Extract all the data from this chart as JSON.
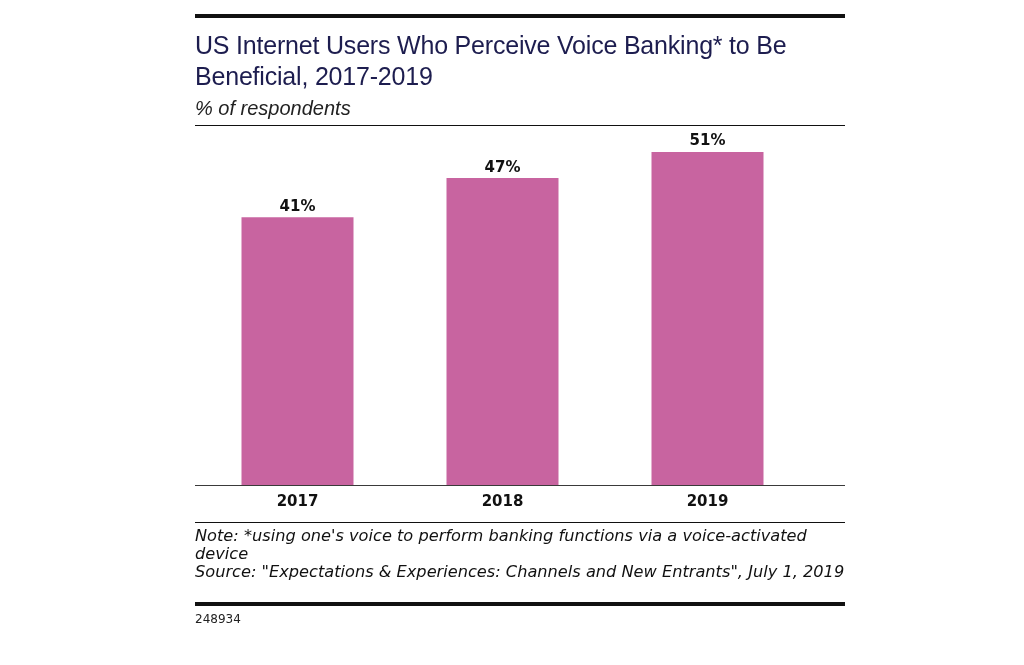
{
  "chart_data": {
    "type": "bar",
    "title": "US Internet Users Who Perceive Voice Banking* to Be Beneficial, 2017-2019",
    "subtitle": "% of respondents",
    "categories": [
      "2017",
      "2018",
      "2019"
    ],
    "values": [
      41,
      47,
      51
    ],
    "color": "#c864a0",
    "value_labels": [
      "41%",
      "47%",
      "51%"
    ],
    "tick_labels": "x",
    "annotations": [
      "Note: *using one's voice to perform banking functions via a voice-activated device",
      "Source: \"Expectations & Experiences: Channels and New Entrants\", July 1, 2019",
      "248934"
    ]
  }
}
